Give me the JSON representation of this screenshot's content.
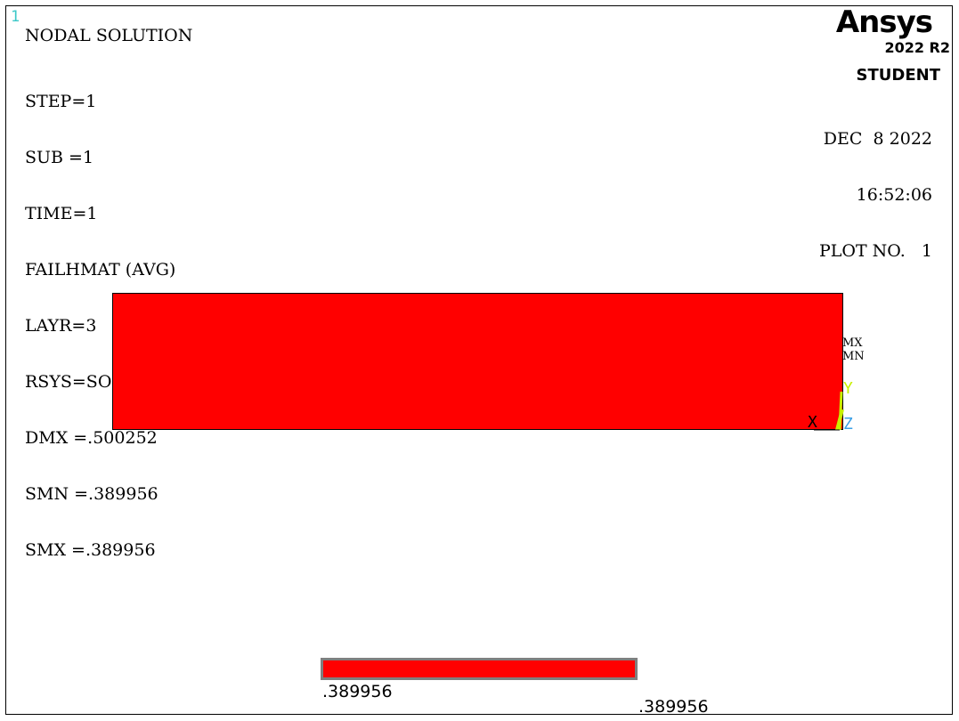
{
  "window_number": "1",
  "plot_title": "NODAL SOLUTION",
  "info": [
    "STEP=1",
    "SUB =1",
    "TIME=1",
    "FAILHMAT (AVG)",
    "LAYR=3",
    "RSYS=SOLU",
    "DMX =.500252",
    "SMN =.389956",
    "SMX =.389956"
  ],
  "logo": {
    "brand": "Ansys",
    "version": "2022 R2",
    "edition": "STUDENT"
  },
  "date": "DEC  8 2022",
  "time": "16:52:06",
  "plot_no": "PLOT NO.   1",
  "markers": {
    "max": "MX",
    "min": "MN"
  },
  "axes": {
    "x": "X",
    "y": "Y",
    "z": "Z"
  },
  "legend": {
    "min_value": ".389956",
    "max_value": ".389956"
  },
  "colors": {
    "contour": "#ff0000",
    "axis_x": "#000000",
    "axis_y": "#c8f000",
    "axis_z": "#3ca0e6",
    "window_number": "#3cc8c8"
  }
}
